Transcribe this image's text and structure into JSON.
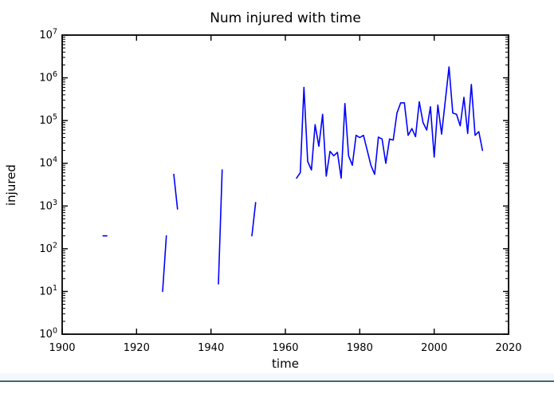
{
  "chart_data": {
    "type": "line",
    "title": "Num injured with time",
    "xlabel": "time",
    "ylabel": "injured",
    "yscale": "log",
    "grid": false,
    "legend": null,
    "xlim": [
      1900,
      2020
    ],
    "ylim": [
      1,
      10000000
    ],
    "x_ticks": [
      1900,
      1920,
      1940,
      1960,
      1980,
      2000,
      2020
    ],
    "y_tick_exponents": [
      0,
      1,
      2,
      3,
      4,
      5,
      6,
      7
    ],
    "series": [
      {
        "name": "injured",
        "color": "#0000ff",
        "segments": [
          [
            [
              1911,
              200
            ],
            [
              1912,
              200
            ]
          ],
          [
            [
              1927,
              10
            ],
            [
              1928,
              200
            ]
          ],
          [
            [
              1930,
              5500
            ],
            [
              1931,
              850
            ]
          ],
          [
            [
              1942,
              15
            ],
            [
              1943,
              7000
            ]
          ],
          [
            [
              1951,
              200
            ],
            [
              1952,
              1200
            ]
          ],
          [
            [
              1963,
              4500
            ],
            [
              1964,
              6000
            ],
            [
              1965,
              600000
            ],
            [
              1966,
              11000
            ],
            [
              1967,
              7000
            ],
            [
              1968,
              80000
            ],
            [
              1969,
              25000
            ],
            [
              1970,
              140000
            ],
            [
              1971,
              5000
            ],
            [
              1972,
              19000
            ],
            [
              1973,
              15000
            ],
            [
              1974,
              18000
            ],
            [
              1975,
              4500
            ],
            [
              1976,
              250000
            ],
            [
              1977,
              15000
            ],
            [
              1978,
              9000
            ],
            [
              1979,
              45000
            ],
            [
              1980,
              40000
            ],
            [
              1981,
              45000
            ],
            [
              1982,
              20000
            ],
            [
              1983,
              9000
            ],
            [
              1984,
              5500
            ],
            [
              1985,
              41000
            ],
            [
              1986,
              37000
            ],
            [
              1987,
              10000
            ],
            [
              1988,
              37000
            ],
            [
              1989,
              35000
            ],
            [
              1990,
              150000
            ],
            [
              1991,
              260000
            ],
            [
              1992,
              260000
            ],
            [
              1993,
              45000
            ],
            [
              1994,
              65000
            ],
            [
              1995,
              42000
            ],
            [
              1996,
              275000
            ],
            [
              1997,
              90000
            ],
            [
              1998,
              60000
            ],
            [
              1999,
              210000
            ],
            [
              2000,
              14000
            ],
            [
              2001,
              230000
            ],
            [
              2002,
              48000
            ],
            [
              2003,
              300000
            ],
            [
              2004,
              1800000
            ],
            [
              2005,
              150000
            ],
            [
              2006,
              140000
            ],
            [
              2007,
              75000
            ],
            [
              2008,
              350000
            ],
            [
              2009,
              50000
            ],
            [
              2010,
              700000
            ],
            [
              2011,
              45000
            ],
            [
              2012,
              55000
            ],
            [
              2013,
              20000
            ]
          ]
        ]
      }
    ]
  },
  "panel": {
    "background": "#f2f8fb",
    "edge_color": "#4a6575"
  }
}
